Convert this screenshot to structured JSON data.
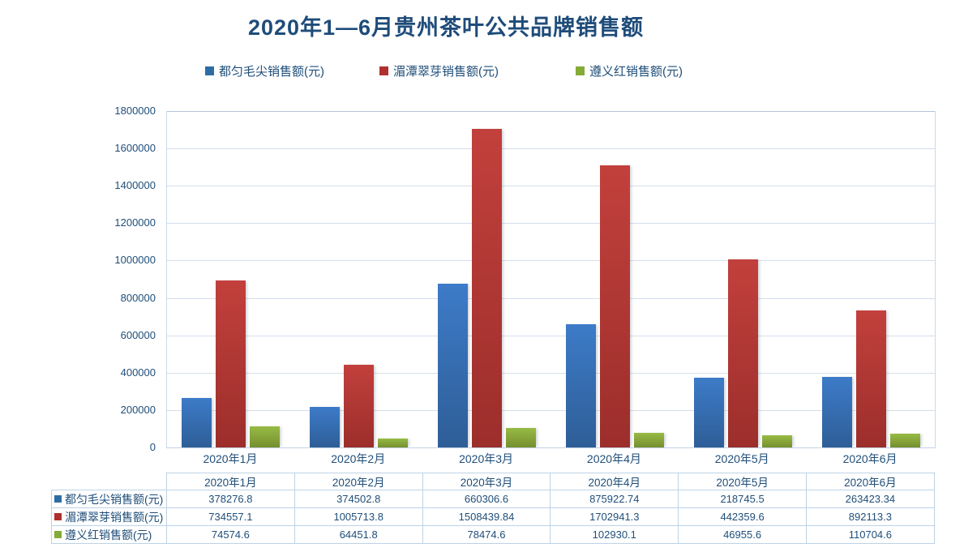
{
  "title": "2020年1—6月贵州茶叶公共品牌销售额",
  "colors": {
    "title_text": "#1E4C7A",
    "axis_text": "#1F4E79",
    "table_text": "#1F4E79",
    "table_border": "#BDD3E7",
    "gridline": "#D2DFEC",
    "gridline_top": "#B5C4D6"
  },
  "chart_data": {
    "type": "bar",
    "title": "2020年1—6月贵州茶叶公共品牌销售额",
    "categories": [
      "2020年1月",
      "2020年2月",
      "2020年3月",
      "2020年4月",
      "2020年5月",
      "2020年6月"
    ],
    "series": [
      {
        "name": "都匀毛尖销售额(元)",
        "color": "#3D7BC8",
        "color_dark": "#2E5E97",
        "swatch_color": "#2E6DA4",
        "values": [
          378276.8,
          374502.8,
          660306.6,
          875922.74,
          218745.5,
          263423.34
        ]
      },
      {
        "name": "湄潭翠芽销售额(元)",
        "color": "#C2403C",
        "color_dark": "#9C2E2B",
        "swatch_color": "#B0302E",
        "values": [
          734557.1,
          1005713.8,
          1508439.84,
          1702941.3,
          442359.6,
          892113.3
        ]
      },
      {
        "name": "遵义红销售额(元)",
        "color": "#97BB45",
        "color_dark": "#758F2F",
        "swatch_color": "#84AC36",
        "values": [
          74574.6,
          64451.8,
          78474.6,
          102930.1,
          46955.6,
          110704.6
        ]
      }
    ],
    "ylim": [
      0,
      1800000
    ],
    "ytick_interval": 200000,
    "ytick_labels": [
      "0",
      "200000",
      "400000",
      "600000",
      "800000",
      "1000000",
      "1200000",
      "1400000",
      "1600000",
      "1800000"
    ],
    "grid": "horizontal",
    "legend_position": "top",
    "data_table_below_axis": true,
    "layout_hints": {
      "bars_plotted_in_reverse_category_order": true,
      "note": "Bar heights at each month position correspond to the table values read in reverse month order"
    }
  }
}
